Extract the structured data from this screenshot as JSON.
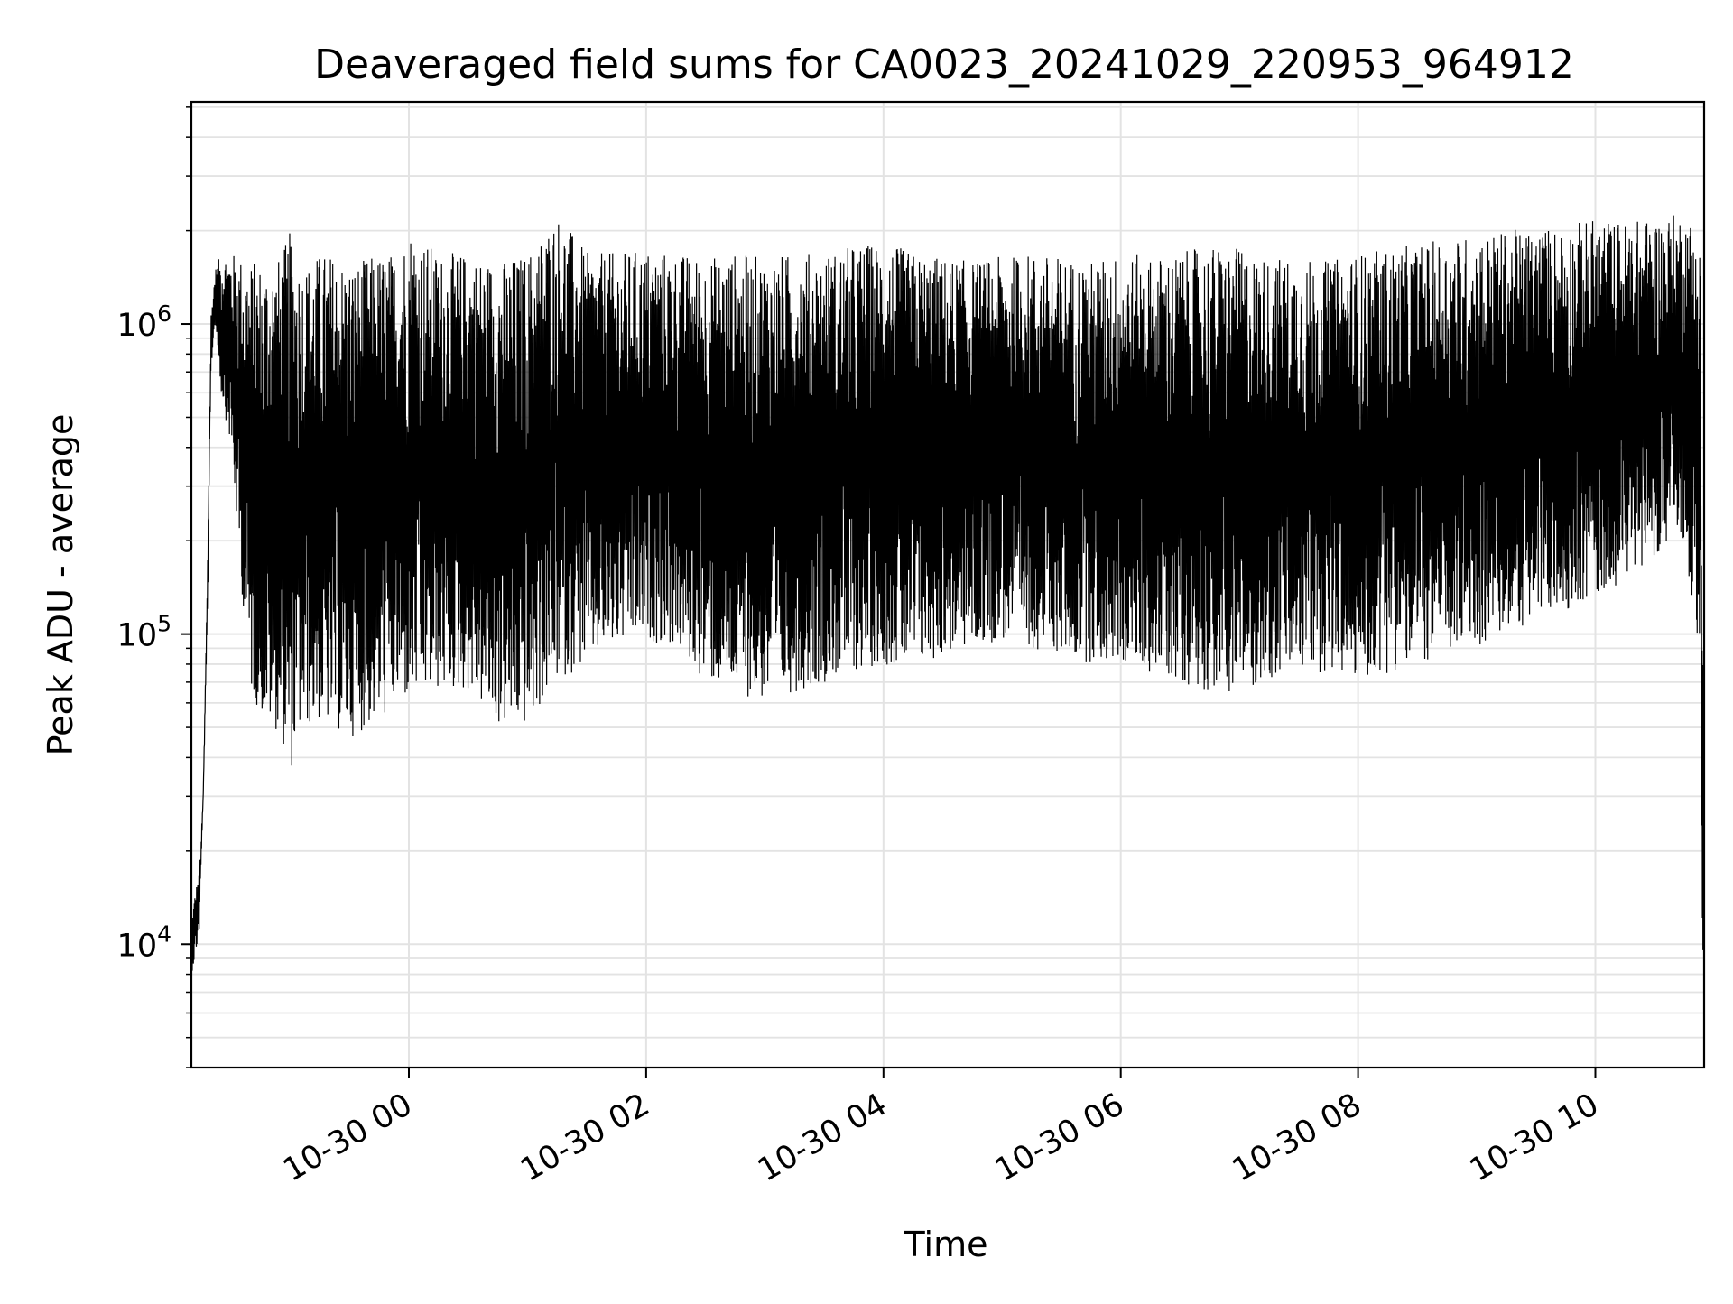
{
  "chart_data": {
    "type": "line",
    "title": "Deaveraged field sums for CA0023_20241029_220953_964912",
    "xlabel": "Time",
    "ylabel": "Peak ADU - average",
    "y_scale": "log",
    "ylim": [
      4000,
      5200000
    ],
    "xlim": [
      "2024-10-29 22:10",
      "2024-10-30 10:55"
    ],
    "grid": true,
    "line_color": "#000000",
    "grid_color": "#e3e3e3",
    "x_ticks": [
      {
        "value": "2024-10-30 00:00",
        "label": "10-30 00"
      },
      {
        "value": "2024-10-30 02:00",
        "label": "10-30 02"
      },
      {
        "value": "2024-10-30 04:00",
        "label": "10-30 04"
      },
      {
        "value": "2024-10-30 06:00",
        "label": "10-30 06"
      },
      {
        "value": "2024-10-30 08:00",
        "label": "10-30 08"
      },
      {
        "value": "2024-10-30 10:00",
        "label": "10-30 10"
      }
    ],
    "y_ticks": [
      {
        "value": 10000,
        "base": "10",
        "exponent": "4"
      },
      {
        "value": 100000,
        "base": "10",
        "exponent": "5"
      },
      {
        "value": 1000000,
        "base": "10",
        "exponent": "6"
      }
    ],
    "series": [
      {
        "x": [
          "2024-10-29 22:10",
          "2024-10-29 22:12",
          "2024-10-29 22:14",
          "2024-10-29 22:16",
          "2024-10-29 22:18",
          "2024-10-29 22:20",
          "2024-10-29 22:22",
          "2024-10-29 22:25",
          "2024-10-29 22:30",
          "2024-10-29 22:35",
          "2024-10-29 22:40",
          "2024-10-29 22:45",
          "2024-10-29 22:50",
          "2024-10-29 22:55",
          "2024-10-29 23:00",
          "2024-10-29 23:05",
          "2024-10-29 23:10",
          "2024-10-29 23:15",
          "2024-10-29 23:20",
          "2024-10-29 23:25",
          "2024-10-29 23:30",
          "2024-10-29 23:35",
          "2024-10-29 23:40",
          "2024-10-29 23:45",
          "2024-10-29 23:50",
          "2024-10-29 23:55",
          "2024-10-30 00:00",
          "2024-10-30 00:15",
          "2024-10-30 00:30",
          "2024-10-30 00:45",
          "2024-10-30 01:00",
          "2024-10-30 01:15",
          "2024-10-30 01:30",
          "2024-10-30 01:45",
          "2024-10-30 02:00",
          "2024-10-30 02:15",
          "2024-10-30 02:30",
          "2024-10-30 02:45",
          "2024-10-30 03:00",
          "2024-10-30 03:15",
          "2024-10-30 03:30",
          "2024-10-30 03:45",
          "2024-10-30 04:00",
          "2024-10-30 04:15",
          "2024-10-30 04:30",
          "2024-10-30 04:45",
          "2024-10-30 05:00",
          "2024-10-30 05:15",
          "2024-10-30 05:30",
          "2024-10-30 05:45",
          "2024-10-30 06:00",
          "2024-10-30 06:15",
          "2024-10-30 06:30",
          "2024-10-30 06:45",
          "2024-10-30 07:00",
          "2024-10-30 07:15",
          "2024-10-30 07:30",
          "2024-10-30 07:45",
          "2024-10-30 08:00",
          "2024-10-30 08:15",
          "2024-10-30 08:30",
          "2024-10-30 08:45",
          "2024-10-30 09:00",
          "2024-10-30 09:15",
          "2024-10-30 09:30",
          "2024-10-30 09:45",
          "2024-10-30 10:00",
          "2024-10-30 10:15",
          "2024-10-30 10:30",
          "2024-10-30 10:45",
          "2024-10-30 10:53",
          "2024-10-30 10:54",
          "2024-10-30 10:55"
        ],
        "low": [
          8000,
          9000,
          11000,
          30000,
          100000,
          700000,
          1000000,
          600000,
          400000,
          150000,
          65000,
          55000,
          50000,
          48000,
          35000,
          48000,
          50000,
          52000,
          50000,
          48000,
          46000,
          48000,
          50000,
          52000,
          55000,
          60000,
          60000,
          65000,
          65000,
          50000,
          50000,
          70000,
          80000,
          90000,
          95000,
          90000,
          70000,
          65000,
          60000,
          65000,
          70000,
          75000,
          80000,
          75000,
          85000,
          90000,
          95000,
          90000,
          85000,
          80000,
          80000,
          75000,
          70000,
          65000,
          65000,
          70000,
          75000,
          75000,
          70000,
          75000,
          80000,
          85000,
          90000,
          100000,
          110000,
          120000,
          130000,
          150000,
          180000,
          200000,
          80000,
          9000,
          9000
        ],
        "high": [
          12000,
          15000,
          17000,
          30000,
          150000,
          1100000,
          1500000,
          1700000,
          1700000,
          1650000,
          1600000,
          1600000,
          1600000,
          1650000,
          2000000,
          1600000,
          1600000,
          1700000,
          1700000,
          1650000,
          1600000,
          1600000,
          1650000,
          1700000,
          1700000,
          1700000,
          2100000,
          1700000,
          1700000,
          1600000,
          1700000,
          2300000,
          1700000,
          1700000,
          1750000,
          1700000,
          1650000,
          1700000,
          1650000,
          1700000,
          1700000,
          1800000,
          1850000,
          1700000,
          1650000,
          1600000,
          1650000,
          1700000,
          1650000,
          1600000,
          1700000,
          1650000,
          1700000,
          1800000,
          1750000,
          1650000,
          1650000,
          1600000,
          1700000,
          1750000,
          1800000,
          1900000,
          1950000,
          2000000,
          2050000,
          2100000,
          2200000,
          2150000,
          2200000,
          2300000,
          2000000,
          150000,
          40000
        ]
      }
    ]
  }
}
